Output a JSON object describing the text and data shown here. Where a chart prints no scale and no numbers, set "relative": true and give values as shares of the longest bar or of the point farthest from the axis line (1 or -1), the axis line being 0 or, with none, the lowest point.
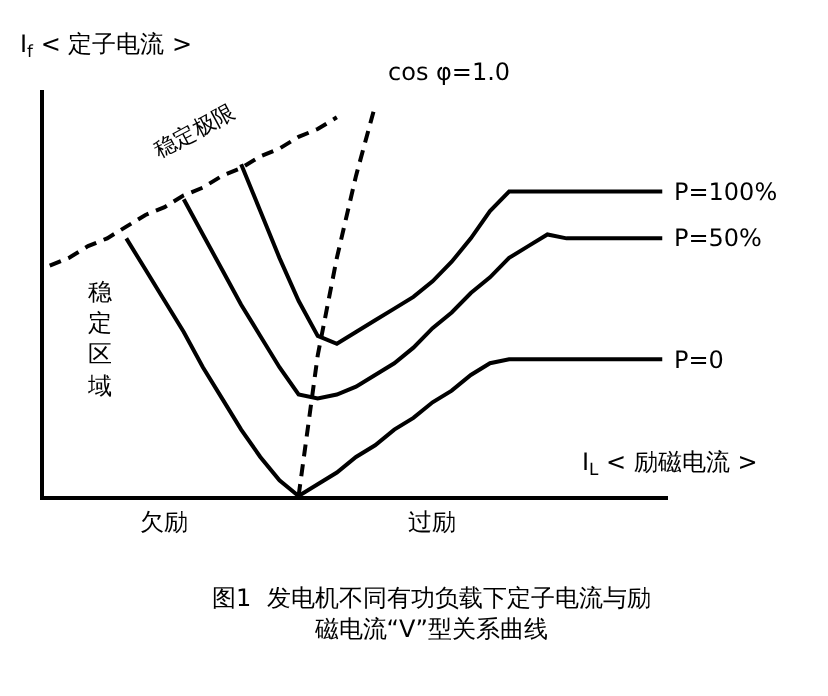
{
  "chart_data": {
    "type": "line",
    "relative": true,
    "xlabel": "I$_{L}$ < 励磁电流 >",
    "ylabel": "I$_{f}$ < 定子电流 >",
    "categories": [
      null,
      null,
      null,
      null,
      null,
      null,
      null,
      null,
      null,
      null,
      null,
      null,
      null,
      null,
      null,
      null,
      null,
      null,
      null,
      null,
      null,
      null,
      null,
      null,
      null,
      null,
      null,
      null,
      null,
      null,
      null,
      null,
      null
    ],
    "series": [
      {
        "name": "稳定极限",
        "color": "#000000",
        "line_style": "dashed",
        "values": [
          0.59,
          0.61,
          0.64,
          0.66,
          0.69,
          0.72,
          0.74,
          0.77,
          0.79,
          0.82,
          0.84,
          0.87,
          0.89,
          0.92,
          0.94,
          0.97,
          null,
          null,
          null,
          null,
          null,
          null,
          null,
          null,
          null,
          null,
          null,
          null,
          null,
          null,
          null,
          null,
          null
        ]
      },
      {
        "name": "cos φ=1.0",
        "color": "#000000",
        "line_style": "dashed",
        "values": [
          null,
          null,
          null,
          null,
          null,
          null,
          null,
          null,
          null,
          null,
          null,
          null,
          null,
          0.0,
          0.36,
          0.61,
          0.82,
          1.0,
          null,
          null,
          null,
          null,
          null,
          null,
          null,
          null,
          null,
          null,
          null,
          null,
          null,
          null,
          null
        ]
      },
      {
        "name": "P=100%",
        "color": "#000000",
        "line_style": "solid",
        "values": [
          null,
          null,
          null,
          null,
          null,
          null,
          null,
          null,
          null,
          null,
          0.85,
          0.73,
          0.61,
          0.5,
          0.41,
          0.39,
          0.42,
          0.45,
          0.48,
          0.51,
          0.55,
          0.6,
          0.66,
          0.73,
          0.78,
          0.78,
          0.78,
          0.78,
          0.78,
          0.78,
          0.78,
          0.78,
          0.78
        ]
      },
      {
        "name": "P=50%",
        "color": "#000000",
        "line_style": "solid",
        "values": [
          null,
          null,
          null,
          null,
          null,
          null,
          null,
          0.76,
          0.67,
          0.58,
          0.49,
          0.41,
          0.33,
          0.26,
          0.25,
          0.26,
          0.28,
          0.31,
          0.34,
          0.38,
          0.43,
          0.47,
          0.52,
          0.56,
          0.61,
          0.64,
          0.67,
          0.66,
          0.66,
          0.66,
          0.66,
          0.66,
          0.66
        ]
      },
      {
        "name": "P=0",
        "color": "#000000",
        "line_style": "solid",
        "values": [
          null,
          null,
          null,
          null,
          0.66,
          0.58,
          0.5,
          0.42,
          0.33,
          0.25,
          0.17,
          0.1,
          0.04,
          0.0,
          0.03,
          0.06,
          0.1,
          0.13,
          0.17,
          0.2,
          0.24,
          0.27,
          0.31,
          0.34,
          0.35,
          0.35,
          0.35,
          0.35,
          0.35,
          0.35,
          0.35,
          0.35,
          0.35
        ]
      }
    ],
    "marker": "none",
    "legend": false,
    "annotations": [
      "稳定区域",
      "欠励",
      "过励",
      "图1  发电机不同有功负载下定子电流与励磁电流“V”型关系曲线"
    ]
  }
}
